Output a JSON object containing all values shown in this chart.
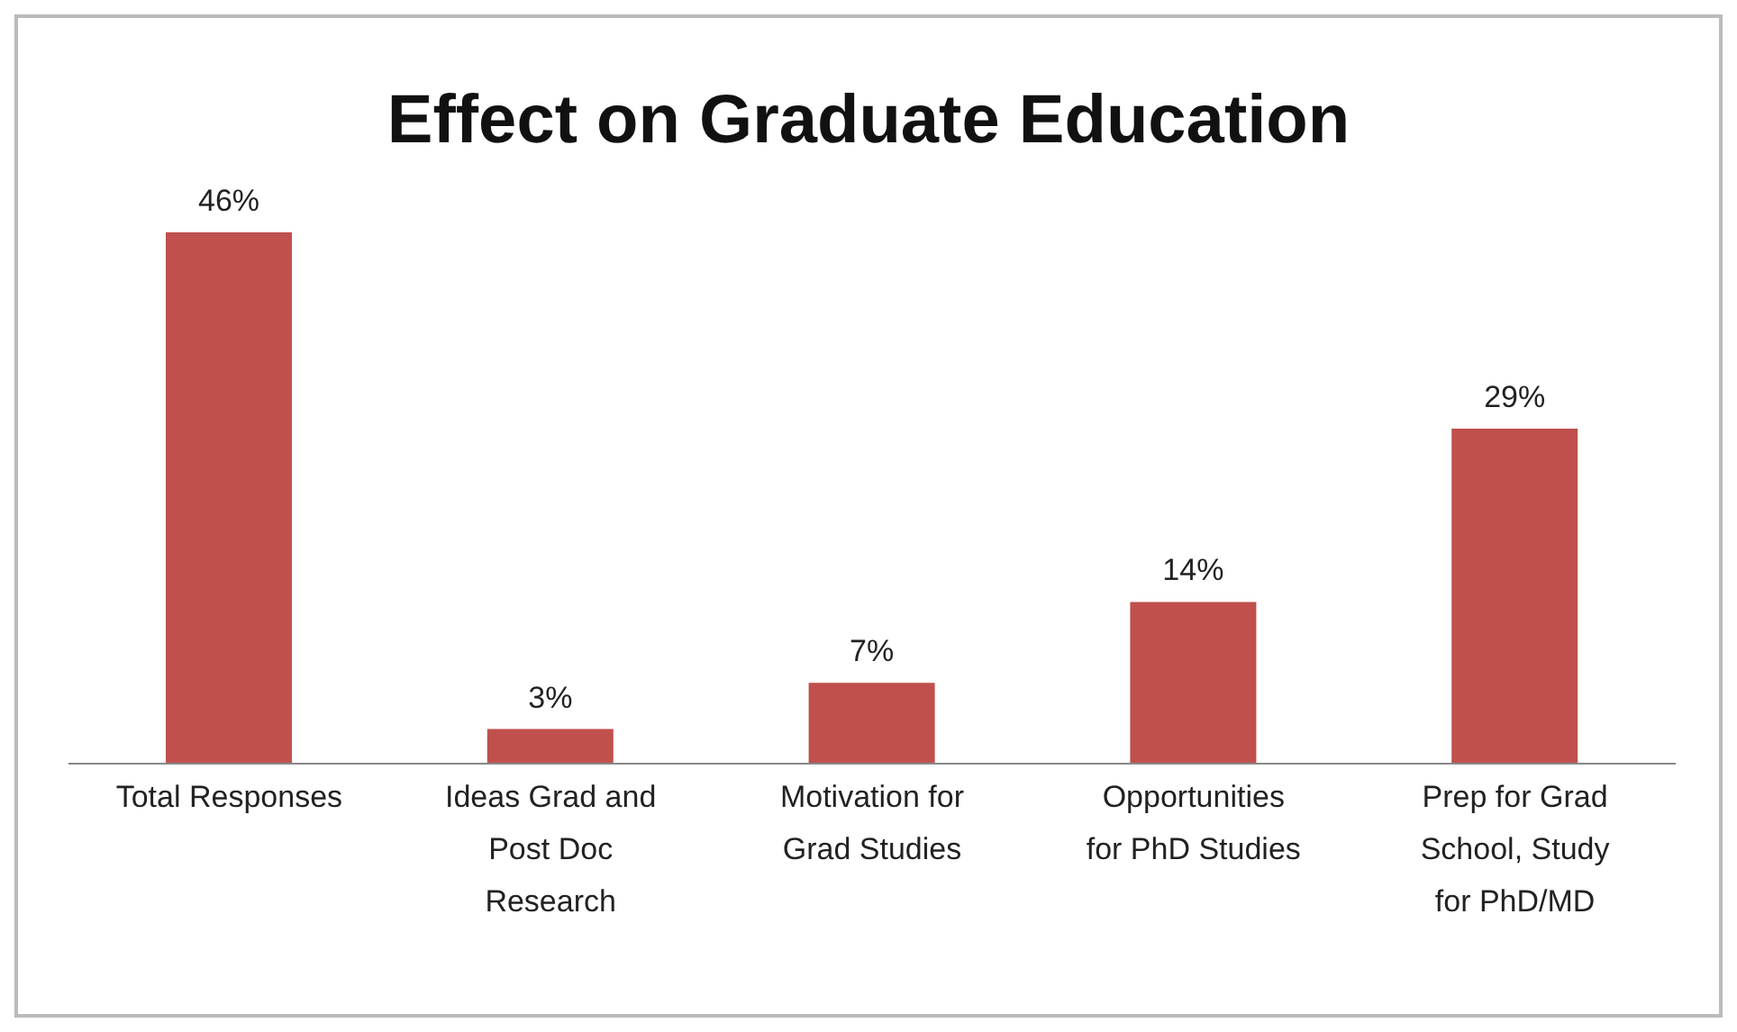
{
  "chart_data": {
    "type": "bar",
    "title": "Effect on Graduate Education",
    "categories": [
      "Total Responses",
      "Ideas Grad and Post Doc Research",
      "Motivation for Grad Studies",
      "Opportunities for PhD Studies",
      "Prep for Grad School, Study for PhD/MD"
    ],
    "values": [
      46,
      3,
      7,
      14,
      29
    ],
    "value_labels": [
      "46%",
      "3%",
      "7%",
      "14%",
      "29%"
    ],
    "color": "#c0504d",
    "legend": false,
    "grid": false
  }
}
